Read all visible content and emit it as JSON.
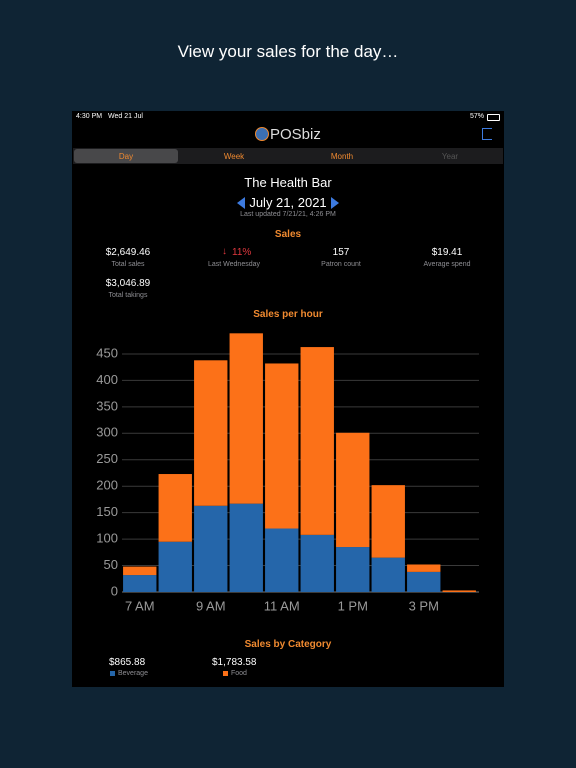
{
  "caption": "View your sales for the day…",
  "status_bar": {
    "time": "4:30 PM",
    "date": "Wed 21 Jul",
    "battery": "57%"
  },
  "header": {
    "logo": "POSbiz"
  },
  "tabs": [
    "Day",
    "Week",
    "Month",
    "Year"
  ],
  "venue": "The Health Bar",
  "date": "July 21, 2021",
  "last_updated": "Last updated 7/21/21, 4:26 PM",
  "sales": {
    "title": "Sales",
    "stats": [
      {
        "value": "$2,649.46",
        "label": "Total sales"
      },
      {
        "value": "11%",
        "label": "Last Wednesday"
      },
      {
        "value": "157",
        "label": "Patron count"
      },
      {
        "value": "$19.41",
        "label": "Average spend"
      },
      {
        "value": "$3,046.89",
        "label": "Total takings"
      }
    ]
  },
  "chart_data": {
    "type": "bar",
    "stacked": true,
    "title": "Sales per hour",
    "categories": [
      "7 AM",
      null,
      "9 AM",
      null,
      "11 AM",
      null,
      "1 PM",
      null,
      "3 PM",
      null
    ],
    "series": [
      {
        "name": "Beverage",
        "color": "#2566aa",
        "values": [
          32,
          95,
          163,
          167,
          120,
          108,
          85,
          65,
          38,
          0
        ]
      },
      {
        "name": "Food",
        "color": "#fc7118",
        "values": [
          16,
          128,
          275,
          322,
          312,
          355,
          216,
          137,
          14,
          3
        ]
      }
    ],
    "ylim": [
      0,
      500
    ],
    "yticks": [
      0,
      50,
      100,
      150,
      200,
      250,
      300,
      350,
      400,
      450
    ],
    "grid": true
  },
  "category": {
    "title": "Sales by Category",
    "values": [
      "$865.88",
      "$1,783.58"
    ]
  }
}
